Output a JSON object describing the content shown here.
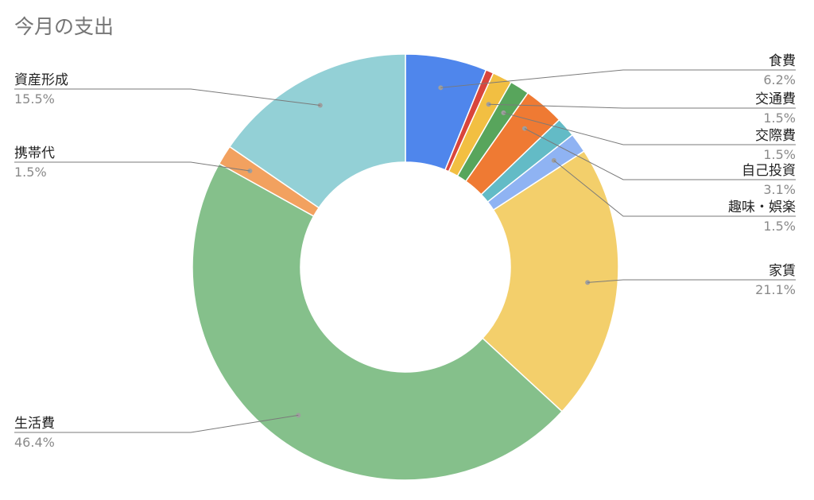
{
  "chart_data": {
    "type": "pie",
    "donut": true,
    "title": "今月の支出",
    "legend": "none",
    "slices": [
      {
        "label": "食費",
        "value": 6.2,
        "display": "6.2%",
        "color": "#4f86ec"
      },
      {
        "label": "",
        "value": 0.6,
        "display": "",
        "color": "#d9453c"
      },
      {
        "label": "交通費",
        "value": 1.5,
        "display": "1.5%",
        "color": "#f2bf42"
      },
      {
        "label": "交際費",
        "value": 1.5,
        "display": "1.5%",
        "color": "#58a55c"
      },
      {
        "label": "自己投資",
        "value": 3.1,
        "display": "3.1%",
        "color": "#ef7a33"
      },
      {
        "label": "",
        "value": 1.5,
        "display": "",
        "color": "#63bbc6"
      },
      {
        "label": "趣味・娯楽",
        "value": 1.5,
        "display": "1.5%",
        "color": "#8fb3f3"
      },
      {
        "label": "家賃",
        "value": 21.1,
        "display": "21.1%",
        "color": "#f3cf6b"
      },
      {
        "label": "生活費",
        "value": 46.4,
        "display": "46.4%",
        "color": "#85c08b"
      },
      {
        "label": "携帯代",
        "value": 1.5,
        "display": "1.5%",
        "color": "#f2a15f"
      },
      {
        "label": "資産形成",
        "value": 15.5,
        "display": "15.5%",
        "color": "#93d0d6"
      }
    ]
  }
}
